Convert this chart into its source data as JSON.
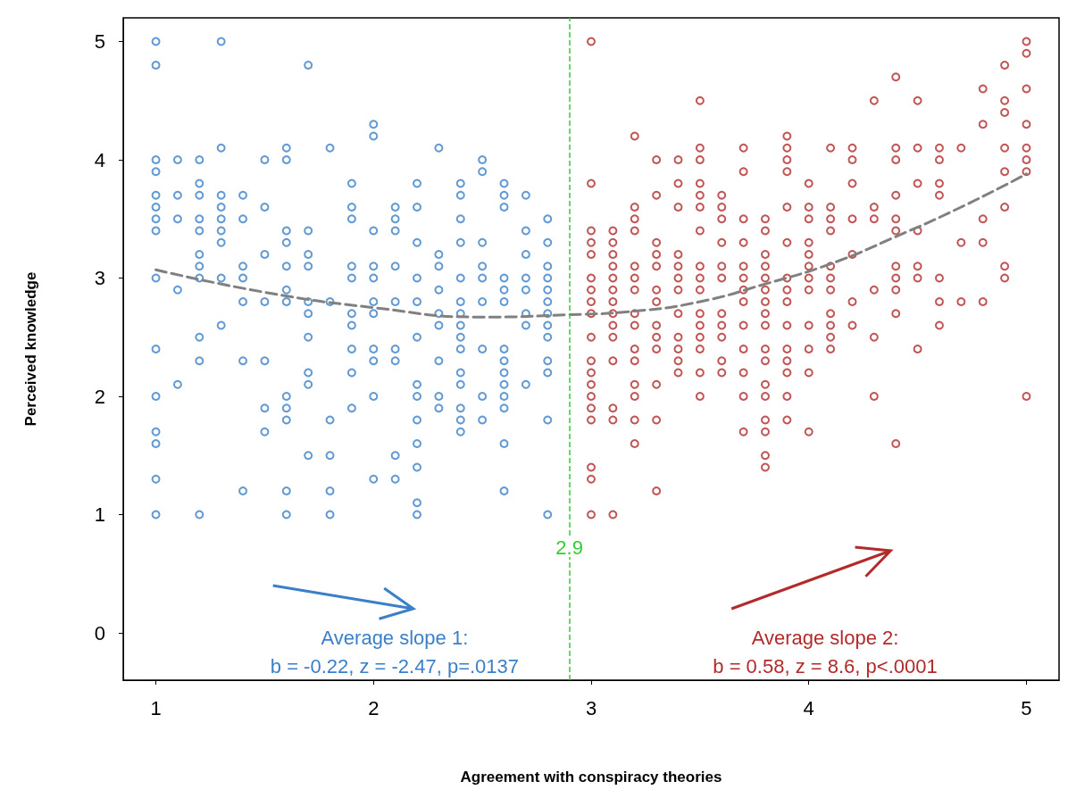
{
  "chart_data": {
    "type": "scatter",
    "xlabel": "Agreement with conspiracy theories",
    "ylabel": "Perceived knowledge",
    "xlim": [
      0.85,
      5.15
    ],
    "xticks": [
      1,
      2,
      3,
      4,
      5
    ],
    "ylim": [
      -0.4,
      5.2
    ],
    "yticks": [
      0,
      1,
      2,
      3,
      4,
      5
    ],
    "grid": false,
    "marker": "circle",
    "series": [
      {
        "color": "#3a7fc8",
        "x": [
          1,
          1,
          1,
          1,
          1,
          1,
          1,
          1,
          1,
          1,
          1,
          1,
          1,
          1,
          1,
          1.1,
          1.1,
          1.1,
          1.1,
          1.1,
          1.2,
          1.2,
          1.2,
          1.2,
          1.2,
          1.2,
          1.2,
          1.2,
          1.2,
          1.2,
          1.2,
          1.3,
          1.3,
          1.3,
          1.3,
          1.3,
          1.3,
          1.3,
          1.3,
          1.3,
          1.4,
          1.4,
          1.4,
          1.4,
          1.4,
          1.4,
          1.4,
          1.5,
          1.5,
          1.5,
          1.5,
          1.5,
          1.5,
          1.5,
          1.6,
          1.6,
          1.6,
          1.6,
          1.6,
          1.6,
          1.6,
          1.6,
          1.6,
          1.6,
          1.6,
          1.6,
          1.7,
          1.7,
          1.7,
          1.7,
          1.7,
          1.7,
          1.7,
          1.7,
          1.7,
          1.7,
          1.8,
          1.8,
          1.8,
          1.8,
          1.8,
          1.8,
          1.9,
          1.9,
          1.9,
          1.9,
          1.9,
          1.9,
          1.9,
          1.9,
          1.9,
          1.9,
          2,
          2,
          2,
          2,
          2,
          2,
          2,
          2,
          2,
          2,
          2,
          2.1,
          2.1,
          2.1,
          2.1,
          2.1,
          2.1,
          2.1,
          2.1,
          2.1,
          2.2,
          2.2,
          2.2,
          2.2,
          2.2,
          2.2,
          2.2,
          2.2,
          2.2,
          2.2,
          2.2,
          2.2,
          2.2,
          2.3,
          2.3,
          2.3,
          2.3,
          2.3,
          2.3,
          2.3,
          2.3,
          2.3,
          2.4,
          2.4,
          2.4,
          2.4,
          2.4,
          2.4,
          2.4,
          2.4,
          2.4,
          2.4,
          2.4,
          2.4,
          2.4,
          2.4,
          2.4,
          2.5,
          2.5,
          2.5,
          2.5,
          2.5,
          2.5,
          2.5,
          2.5,
          2.5,
          2.6,
          2.6,
          2.6,
          2.6,
          2.6,
          2.6,
          2.6,
          2.6,
          2.6,
          2.6,
          2.6,
          2.6,
          2.6,
          2.6,
          2.7,
          2.7,
          2.7,
          2.7,
          2.7,
          2.7,
          2.7,
          2.7,
          2.8,
          2.8,
          2.8,
          2.8,
          2.8,
          2.8,
          2.8,
          2.8,
          2.8,
          2.8,
          2.8,
          2.8,
          2.8
        ],
        "values": [
          5,
          4.8,
          4,
          3.9,
          3.7,
          3.6,
          3.5,
          3.4,
          3,
          2.4,
          2,
          1.7,
          1.6,
          1.3,
          1,
          4,
          3.7,
          3.5,
          2.9,
          2.1,
          4,
          3.8,
          3.7,
          3.5,
          3.4,
          3.2,
          3.1,
          3,
          2.5,
          2.3,
          1,
          5,
          4.1,
          3.7,
          3.6,
          3.5,
          3.4,
          3.3,
          3,
          2.6,
          3.7,
          3.5,
          3.1,
          3,
          2.8,
          2.3,
          1.2,
          4,
          3.6,
          3.2,
          2.8,
          2.3,
          1.9,
          1.7,
          4.1,
          4,
          3.4,
          3.3,
          3.1,
          2.9,
          2.8,
          2,
          1.9,
          1.8,
          1.2,
          1,
          4.8,
          3.4,
          3.2,
          3.1,
          2.8,
          2.7,
          2.5,
          2.2,
          2.1,
          1.5,
          4.1,
          2.8,
          1.8,
          1.5,
          1.2,
          1,
          3.8,
          3.6,
          3.5,
          3.1,
          3,
          2.7,
          2.6,
          2.4,
          2.2,
          1.9,
          4.3,
          4.2,
          3.4,
          3.1,
          3,
          2.8,
          2.7,
          2.4,
          2.3,
          2,
          1.3,
          3.6,
          3.5,
          3.4,
          3.1,
          2.8,
          2.4,
          2.3,
          1.5,
          1.3,
          3.8,
          3.6,
          3.3,
          3,
          2.8,
          2.5,
          2.1,
          2,
          1.8,
          1.6,
          1.4,
          1.1,
          1,
          4.1,
          3.2,
          3.1,
          2.9,
          2.7,
          2.6,
          2.3,
          2,
          1.9,
          3.8,
          3.7,
          3.5,
          3.3,
          3,
          2.8,
          2.7,
          2.6,
          2.5,
          2.4,
          2.2,
          2.1,
          1.9,
          1.8,
          1.7,
          4,
          3.9,
          3.3,
          3.1,
          3,
          2.8,
          2.4,
          2,
          1.8,
          3.8,
          3.7,
          3.6,
          3,
          2.9,
          2.8,
          2.4,
          2.3,
          2.2,
          2.1,
          2,
          1.9,
          1.6,
          1.2,
          3.7,
          3.4,
          3.2,
          3,
          2.9,
          2.7,
          2.6,
          2.1,
          3.5,
          3.3,
          3.1,
          3,
          2.9,
          2.8,
          2.7,
          2.6,
          2.5,
          2.3,
          2.2,
          1.8,
          1
        ]
      },
      {
        "color": "#b22a2a",
        "x": [
          3,
          3,
          3,
          3,
          3,
          3,
          3,
          3,
          3,
          3,
          3,
          3,
          3,
          3,
          3,
          3,
          3,
          3,
          3,
          3.1,
          3.1,
          3.1,
          3.1,
          3.1,
          3.1,
          3.1,
          3.1,
          3.1,
          3.1,
          3.1,
          3.1,
          3.1,
          3.1,
          3.2,
          3.2,
          3.2,
          3.2,
          3.2,
          3.2,
          3.2,
          3.2,
          3.2,
          3.2,
          3.2,
          3.2,
          3.2,
          3.2,
          3.2,
          3.3,
          3.3,
          3.3,
          3.3,
          3.3,
          3.3,
          3.3,
          3.3,
          3.3,
          3.3,
          3.3,
          3.3,
          3.3,
          3.4,
          3.4,
          3.4,
          3.4,
          3.4,
          3.4,
          3.4,
          3.4,
          3.4,
          3.4,
          3.4,
          3.4,
          3.5,
          3.5,
          3.5,
          3.5,
          3.5,
          3.5,
          3.5,
          3.5,
          3.5,
          3.5,
          3.5,
          3.5,
          3.5,
          3.5,
          3.5,
          3.5,
          3.6,
          3.6,
          3.6,
          3.6,
          3.6,
          3.6,
          3.6,
          3.6,
          3.6,
          3.6,
          3.6,
          3.7,
          3.7,
          3.7,
          3.7,
          3.7,
          3.7,
          3.7,
          3.7,
          3.7,
          3.7,
          3.7,
          3.7,
          3.7,
          3.8,
          3.8,
          3.8,
          3.8,
          3.8,
          3.8,
          3.8,
          3.8,
          3.8,
          3.8,
          3.8,
          3.8,
          3.8,
          3.8,
          3.8,
          3.8,
          3.8,
          3.9,
          3.9,
          3.9,
          3.9,
          3.9,
          3.9,
          3.9,
          3.9,
          3.9,
          3.9,
          3.9,
          3.9,
          3.9,
          3.9,
          3.9,
          4,
          4,
          4,
          4,
          4,
          4,
          4,
          4,
          4,
          4,
          4,
          4,
          4.1,
          4.1,
          4.1,
          4.1,
          4.1,
          4.1,
          4.1,
          4.1,
          4.1,
          4.1,
          4.1,
          4.2,
          4.2,
          4.2,
          4.2,
          4.2,
          4.2,
          4.2,
          4.3,
          4.3,
          4.3,
          4.3,
          4.3,
          4.3,
          4.4,
          4.4,
          4.4,
          4.4,
          4.4,
          4.4,
          4.4,
          4.4,
          4.4,
          4.4,
          4.4,
          4.5,
          4.5,
          4.5,
          4.5,
          4.5,
          4.5,
          4.5,
          4.6,
          4.6,
          4.6,
          4.6,
          4.6,
          4.6,
          4.6,
          4.7,
          4.7,
          4.7,
          4.8,
          4.8,
          4.8,
          4.8,
          4.8,
          4.9,
          4.9,
          4.9,
          4.9,
          4.9,
          4.9,
          4.9,
          4.9,
          5,
          5,
          5,
          5,
          5,
          5,
          5,
          5
        ],
        "values": [
          5,
          3.8,
          3.4,
          3.3,
          3.2,
          3,
          2.9,
          2.8,
          2.7,
          2.5,
          2.3,
          2.2,
          2.1,
          2,
          1.9,
          1.8,
          1.4,
          1.3,
          1,
          3.4,
          3.3,
          3.2,
          3.1,
          3,
          2.9,
          2.8,
          2.7,
          2.6,
          2.5,
          2.3,
          1.9,
          1.8,
          1,
          4.2,
          3.6,
          3.5,
          3.4,
          3.1,
          3,
          2.9,
          2.7,
          2.6,
          2.4,
          2.3,
          2.1,
          2,
          1.8,
          1.6,
          4,
          3.7,
          3.3,
          3.2,
          3.1,
          2.9,
          2.8,
          2.6,
          2.5,
          2.4,
          2.1,
          1.8,
          1.2,
          4,
          3.8,
          3.6,
          3.2,
          3.1,
          3,
          2.9,
          2.7,
          2.5,
          2.4,
          2.3,
          2.2,
          4.5,
          4.1,
          4,
          3.8,
          3.7,
          3.6,
          3.4,
          3.1,
          3,
          2.9,
          2.7,
          2.6,
          2.5,
          2.4,
          2.2,
          2,
          3.7,
          3.6,
          3.5,
          3.3,
          3.1,
          3,
          2.7,
          2.6,
          2.5,
          2.3,
          2.2,
          4.1,
          3.9,
          3.5,
          3.3,
          3.1,
          3,
          2.9,
          2.8,
          2.6,
          2.4,
          2.2,
          2,
          1.7,
          3.5,
          3.4,
          3.2,
          3.1,
          3,
          2.9,
          2.8,
          2.7,
          2.6,
          2.4,
          2.3,
          2.1,
          2,
          1.8,
          1.7,
          1.5,
          1.4,
          4.2,
          4.1,
          4,
          3.9,
          3.6,
          3.3,
          3,
          2.9,
          2.8,
          2.6,
          2.4,
          2.3,
          2.2,
          2,
          1.8,
          3.8,
          3.6,
          3.5,
          3.3,
          3.2,
          3.1,
          3,
          2.9,
          2.6,
          2.4,
          2.2,
          1.7,
          4.1,
          3.6,
          3.5,
          3.4,
          3.1,
          3,
          2.9,
          2.7,
          2.6,
          2.5,
          2.4,
          4.1,
          4,
          3.8,
          3.5,
          3.2,
          2.8,
          2.6,
          4.5,
          3.6,
          3.5,
          2.9,
          2.5,
          2,
          4.7,
          4.1,
          4,
          3.7,
          3.5,
          3.4,
          3.1,
          3,
          2.9,
          2.7,
          1.6,
          4.5,
          4.1,
          3.8,
          3.4,
          3.1,
          3,
          2.4,
          4.1,
          4,
          3.8,
          3.7,
          3,
          2.8,
          2.6,
          4.1,
          3.3,
          2.8,
          4.6,
          4.3,
          3.5,
          3.3,
          2.8,
          4.8,
          4.5,
          4.4,
          4.1,
          3.9,
          3.6,
          3.1,
          3,
          5,
          4.9,
          4.6,
          4.3,
          4.1,
          4,
          3.9,
          2
        ]
      },
      {
        "type": "line",
        "color": "#808080",
        "line_style": "dashed",
        "marker": "none",
        "x": [
          1,
          1.5,
          2,
          2.5,
          2.9,
          3.2,
          3.5,
          3.8,
          4.1,
          4.4,
          4.7,
          5
        ],
        "values": [
          3.07,
          2.88,
          2.75,
          2.67,
          2.69,
          2.72,
          2.8,
          2.95,
          3.12,
          3.35,
          3.6,
          3.88
        ]
      }
    ],
    "ref_lines": [
      {
        "axis": "x",
        "value": 2.9,
        "label": "2.9",
        "color": "#33cc33",
        "line_style": "dashed"
      }
    ],
    "annotations": [
      "Average slope 1:\nb = -0.22, z = -2.47, p=.0137",
      "Average slope 2:\nb = 0.58, z = 8.6, p<.0001"
    ]
  }
}
